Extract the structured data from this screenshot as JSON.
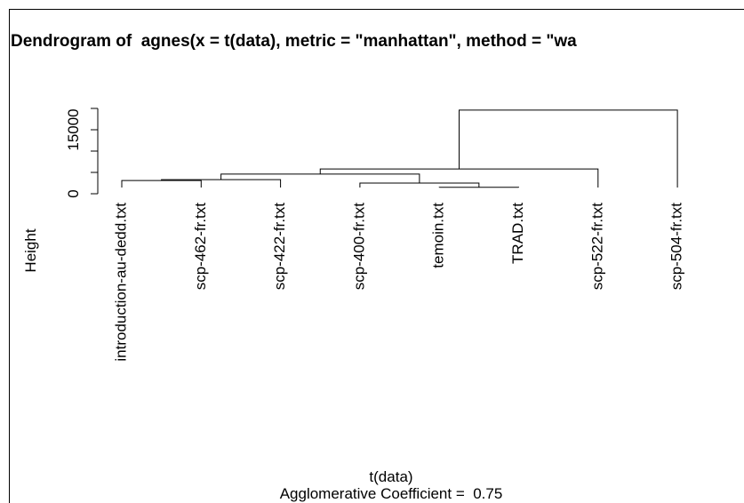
{
  "chart_data": {
    "type": "dendrogram",
    "title": "Dendrogram of  agnes(x = t(data), metric = \"manhattan\", method = \"wa",
    "y_label": "Height",
    "x_label": "t(data)",
    "subtitle": "Agglomerative Coefficient =  0.75",
    "leaves": [
      "introduction-au-dedd.txt",
      "scp-462-fr.txt",
      "scp-422-fr.txt",
      "scp-400-fr.txt",
      "temoin.txt",
      "TRAD.txt",
      "scp-522-fr.txt",
      "scp-504-fr.txt"
    ],
    "merges": [
      {
        "children": [
          0,
          1
        ],
        "height": 3100
      },
      {
        "children": [
          8,
          2
        ],
        "height": 3300
      },
      {
        "children": [
          4,
          5
        ],
        "height": 1500
      },
      {
        "children": [
          3,
          10
        ],
        "height": 2500
      },
      {
        "children": [
          9,
          11
        ],
        "height": 4600
      },
      {
        "children": [
          12,
          6
        ],
        "height": 5800
      },
      {
        "children": [
          13,
          7
        ],
        "height": 19600
      }
    ],
    "ylim": [
      0,
      20000
    ],
    "yticks": [
      0,
      {
        "value": 5000,
        "label": null
      },
      {
        "value": 10000,
        "label": null
      },
      15000,
      {
        "value": 20000,
        "label": null
      }
    ]
  }
}
